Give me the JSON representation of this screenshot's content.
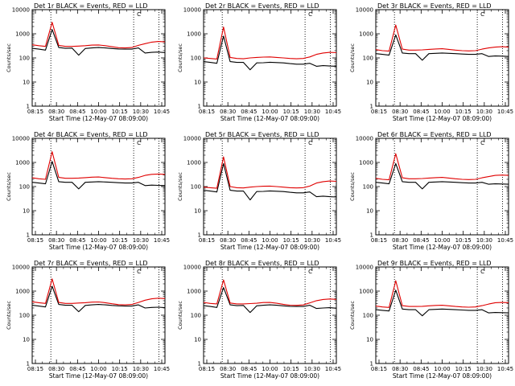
{
  "figure": {
    "layout": {
      "cols": 3,
      "rows": 3
    },
    "colors": {
      "events": "#000000",
      "lld": "#e00000",
      "axes": "#000000",
      "background": "#ffffff"
    },
    "markers": {
      "vertical_dotted_times": [
        "08:26",
        "10:25",
        "10:43"
      ],
      "bracket_label": "C"
    }
  },
  "chart_data": [
    {
      "type": "line",
      "title": "Det 1r  BLACK = Events, RED = LLD",
      "xlabel": "Start Time (12-May-07 08:09:00)",
      "ylabel": "Counts/sec",
      "x_ticks": [
        "08:15",
        "08:30",
        "08:45",
        "10:00",
        "10:15",
        "10:30",
        "10:45"
      ],
      "y_ticks": [
        "1",
        "10",
        "100",
        "1000",
        "10000"
      ],
      "ylim": [
        1,
        10000
      ],
      "yscale": "log",
      "x": [
        0,
        1,
        2,
        3,
        4,
        5,
        6,
        7,
        8,
        9,
        10,
        11,
        12,
        13,
        14,
        15,
        16,
        17,
        18,
        19,
        20
      ],
      "series": [
        {
          "name": "Events",
          "color": "#000000",
          "values": [
            250,
            230,
            210,
            1500,
            270,
            250,
            255,
            130,
            245,
            260,
            270,
            260,
            245,
            235,
            230,
            230,
            260,
            160,
            170,
            175,
            165
          ]
        },
        {
          "name": "LLD",
          "color": "#e00000",
          "values": [
            350,
            320,
            300,
            3000,
            330,
            300,
            300,
            310,
            320,
            340,
            345,
            320,
            290,
            265,
            260,
            270,
            330,
            390,
            450,
            480,
            460
          ]
        }
      ]
    },
    {
      "type": "line",
      "title": "Det 2r  BLACK = Events, RED = LLD",
      "xlabel": "Start Time (12-May-07 08:09:00)",
      "ylabel": "Counts/sec",
      "x_ticks": [
        "08:15",
        "08:30",
        "08:45",
        "10:00",
        "10:15",
        "10:30",
        "10:45"
      ],
      "y_ticks": [
        "1",
        "10",
        "100",
        "1000",
        "10000"
      ],
      "ylim": [
        1,
        10000
      ],
      "yscale": "log",
      "x": [
        0,
        1,
        2,
        3,
        4,
        5,
        6,
        7,
        8,
        9,
        10,
        11,
        12,
        13,
        14,
        15,
        16,
        17,
        18,
        19,
        20
      ],
      "series": [
        {
          "name": "Events",
          "color": "#000000",
          "values": [
            70,
            65,
            60,
            800,
            70,
            65,
            65,
            32,
            62,
            63,
            66,
            64,
            62,
            58,
            55,
            55,
            60,
            45,
            48,
            46,
            45
          ]
        },
        {
          "name": "LLD",
          "color": "#e00000",
          "values": [
            100,
            95,
            90,
            1900,
            105,
            95,
            92,
            100,
            105,
            108,
            110,
            105,
            100,
            95,
            92,
            95,
            110,
            140,
            160,
            170,
            165
          ]
        }
      ]
    },
    {
      "type": "line",
      "title": "Det 3r  BLACK = Events, RED = LLD",
      "xlabel": "Start Time (12-May-07 08:09:00)",
      "ylabel": "Counts/sec",
      "x_ticks": [
        "08:15",
        "08:30",
        "08:45",
        "10:00",
        "10:15",
        "10:30",
        "10:45"
      ],
      "y_ticks": [
        "1",
        "10",
        "100",
        "1000",
        "10000"
      ],
      "ylim": [
        1,
        10000
      ],
      "yscale": "log",
      "x": [
        0,
        1,
        2,
        3,
        4,
        5,
        6,
        7,
        8,
        9,
        10,
        11,
        12,
        13,
        14,
        15,
        16,
        17,
        18,
        19,
        20
      ],
      "series": [
        {
          "name": "Events",
          "color": "#000000",
          "values": [
            150,
            140,
            130,
            900,
            160,
            150,
            150,
            80,
            150,
            155,
            160,
            155,
            150,
            145,
            140,
            140,
            150,
            115,
            120,
            118,
            115
          ]
        },
        {
          "name": "LLD",
          "color": "#e00000",
          "values": [
            220,
            200,
            190,
            2300,
            230,
            210,
            210,
            215,
            225,
            235,
            240,
            225,
            210,
            200,
            195,
            200,
            230,
            260,
            280,
            290,
            280
          ]
        }
      ]
    },
    {
      "type": "line",
      "title": "Det 4r  BLACK = Events, RED = LLD",
      "xlabel": "Start Time (12-May-07 08:09:00)",
      "ylabel": "Counts/sec",
      "x_ticks": [
        "08:15",
        "08:30",
        "08:45",
        "10:00",
        "10:15",
        "10:30",
        "10:45"
      ],
      "y_ticks": [
        "1",
        "10",
        "100",
        "1000",
        "10000"
      ],
      "ylim": [
        1,
        10000
      ],
      "yscale": "log",
      "x": [
        0,
        1,
        2,
        3,
        4,
        5,
        6,
        7,
        8,
        9,
        10,
        11,
        12,
        13,
        14,
        15,
        16,
        17,
        18,
        19,
        20
      ],
      "series": [
        {
          "name": "Events",
          "color": "#000000",
          "values": [
            150,
            140,
            130,
            1100,
            160,
            150,
            150,
            80,
            150,
            155,
            160,
            155,
            150,
            145,
            140,
            140,
            150,
            110,
            115,
            112,
            110
          ]
        },
        {
          "name": "LLD",
          "color": "#e00000",
          "values": [
            230,
            210,
            200,
            2800,
            240,
            220,
            220,
            225,
            235,
            245,
            250,
            235,
            220,
            210,
            205,
            210,
            240,
            290,
            320,
            330,
            320
          ]
        }
      ]
    },
    {
      "type": "line",
      "title": "Det 5r  BLACK = Events, RED = LLD",
      "xlabel": "Start Time (12-May-07 08:09:00)",
      "ylabel": "Counts/sec",
      "x_ticks": [
        "08:15",
        "08:30",
        "08:45",
        "10:00",
        "10:15",
        "10:30",
        "10:45"
      ],
      "y_ticks": [
        "1",
        "10",
        "100",
        "1000",
        "10000"
      ],
      "ylim": [
        1,
        10000
      ],
      "yscale": "log",
      "x": [
        0,
        1,
        2,
        3,
        4,
        5,
        6,
        7,
        8,
        9,
        10,
        11,
        12,
        13,
        14,
        15,
        16,
        17,
        18,
        19,
        20
      ],
      "series": [
        {
          "name": "Events",
          "color": "#000000",
          "values": [
            70,
            65,
            60,
            900,
            70,
            65,
            65,
            28,
            62,
            63,
            66,
            64,
            62,
            58,
            55,
            55,
            60,
            38,
            40,
            38,
            37
          ]
        },
        {
          "name": "LLD",
          "color": "#e00000",
          "values": [
            95,
            90,
            85,
            1700,
            100,
            90,
            88,
            95,
            100,
            103,
            105,
            100,
            95,
            90,
            88,
            90,
            105,
            140,
            160,
            170,
            165
          ]
        }
      ]
    },
    {
      "type": "line",
      "title": "Det 6r  BLACK = Events, RED = LLD",
      "xlabel": "Start Time (12-May-07 08:09:00)",
      "ylabel": "Counts/sec",
      "x_ticks": [
        "08:15",
        "08:30",
        "08:45",
        "10:00",
        "10:15",
        "10:30",
        "10:45"
      ],
      "y_ticks": [
        "1",
        "10",
        "100",
        "1000",
        "10000"
      ],
      "ylim": [
        1,
        10000
      ],
      "yscale": "log",
      "x": [
        0,
        1,
        2,
        3,
        4,
        5,
        6,
        7,
        8,
        9,
        10,
        11,
        12,
        13,
        14,
        15,
        16,
        17,
        18,
        19,
        20
      ],
      "series": [
        {
          "name": "Events",
          "color": "#000000",
          "values": [
            150,
            140,
            130,
            900,
            160,
            150,
            150,
            80,
            150,
            155,
            160,
            155,
            150,
            145,
            140,
            140,
            150,
            125,
            130,
            128,
            125
          ]
        },
        {
          "name": "LLD",
          "color": "#e00000",
          "values": [
            220,
            200,
            190,
            2300,
            230,
            210,
            210,
            215,
            225,
            235,
            240,
            225,
            210,
            200,
            195,
            200,
            230,
            260,
            290,
            300,
            290
          ]
        }
      ]
    },
    {
      "type": "line",
      "title": "Det 7r  BLACK = Events, RED = LLD",
      "xlabel": "Start Time (12-May-07 08:09:00)",
      "ylabel": "Counts/sec",
      "x_ticks": [
        "08:15",
        "08:30",
        "08:45",
        "10:00",
        "10:15",
        "10:30",
        "10:45"
      ],
      "y_ticks": [
        "1",
        "10",
        "100",
        "1000",
        "10000"
      ],
      "ylim": [
        1,
        10000
      ],
      "yscale": "log",
      "x": [
        0,
        1,
        2,
        3,
        4,
        5,
        6,
        7,
        8,
        9,
        10,
        11,
        12,
        13,
        14,
        15,
        16,
        17,
        18,
        19,
        20
      ],
      "series": [
        {
          "name": "Events",
          "color": "#000000",
          "values": [
            260,
            240,
            220,
            1600,
            280,
            260,
            260,
            140,
            255,
            270,
            280,
            270,
            255,
            245,
            240,
            240,
            270,
            200,
            210,
            215,
            205
          ]
        },
        {
          "name": "LLD",
          "color": "#e00000",
          "values": [
            360,
            330,
            310,
            3200,
            340,
            310,
            310,
            320,
            330,
            350,
            355,
            330,
            300,
            275,
            270,
            280,
            340,
            420,
            480,
            510,
            490
          ]
        }
      ]
    },
    {
      "type": "line",
      "title": "Det 8r  BLACK = Events, RED = LLD",
      "xlabel": "Start Time (12-May-07 08:09:00)",
      "ylabel": "Counts/sec",
      "x_ticks": [
        "08:15",
        "08:30",
        "08:45",
        "10:00",
        "10:15",
        "10:30",
        "10:45"
      ],
      "y_ticks": [
        "1",
        "10",
        "100",
        "1000",
        "10000"
      ],
      "ylim": [
        1,
        10000
      ],
      "yscale": "log",
      "x": [
        0,
        1,
        2,
        3,
        4,
        5,
        6,
        7,
        8,
        9,
        10,
        11,
        12,
        13,
        14,
        15,
        16,
        17,
        18,
        19,
        20
      ],
      "series": [
        {
          "name": "Events",
          "color": "#000000",
          "values": [
            250,
            230,
            210,
            1400,
            270,
            250,
            255,
            130,
            245,
            260,
            270,
            260,
            245,
            235,
            230,
            230,
            260,
            190,
            200,
            205,
            195
          ]
        },
        {
          "name": "LLD",
          "color": "#e00000",
          "values": [
            340,
            310,
            295,
            2900,
            320,
            295,
            295,
            305,
            315,
            335,
            340,
            315,
            285,
            262,
            258,
            268,
            325,
            400,
            450,
            470,
            455
          ]
        }
      ]
    },
    {
      "type": "line",
      "title": "Det 9r  BLACK = Events, RED = LLD",
      "xlabel": "Start Time (12-May-07 08:09:00)",
      "ylabel": "Counts/sec",
      "x_ticks": [
        "08:15",
        "08:30",
        "08:45",
        "10:00",
        "10:15",
        "10:30",
        "10:45"
      ],
      "y_ticks": [
        "1",
        "10",
        "100",
        "1000",
        "10000"
      ],
      "ylim": [
        1,
        10000
      ],
      "yscale": "log",
      "x": [
        0,
        1,
        2,
        3,
        4,
        5,
        6,
        7,
        8,
        9,
        10,
        11,
        12,
        13,
        14,
        15,
        16,
        17,
        18,
        19,
        20
      ],
      "series": [
        {
          "name": "Events",
          "color": "#000000",
          "values": [
            170,
            160,
            150,
            1100,
            180,
            170,
            170,
            95,
            170,
            175,
            180,
            175,
            170,
            165,
            160,
            160,
            170,
            125,
            130,
            128,
            125
          ]
        },
        {
          "name": "LLD",
          "color": "#e00000",
          "values": [
            240,
            220,
            210,
            2700,
            250,
            230,
            230,
            235,
            245,
            255,
            260,
            245,
            230,
            220,
            215,
            220,
            250,
            290,
            330,
            340,
            330
          ]
        }
      ]
    }
  ]
}
